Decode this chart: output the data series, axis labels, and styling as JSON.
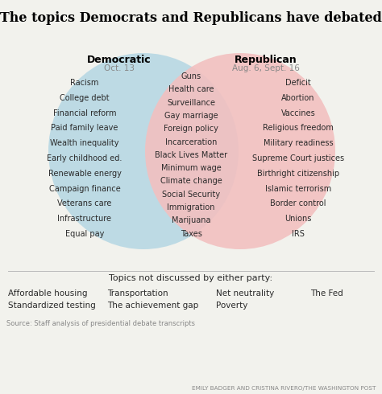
{
  "title": "The topics Democrats and Republicans have debated",
  "title_fontsize": 11.5,
  "dem_label": "Democratic",
  "dem_sublabel": "Oct. 13",
  "rep_label": "Republican",
  "rep_sublabel": "Aug. 6, Sept. 16",
  "dem_color": "#b8d8e4",
  "rep_color": "#f2c0c0",
  "dem_items": [
    "Racism",
    "College debt",
    "Financial reform",
    "Paid family leave",
    "Wealth inequality",
    "Early childhood ed.",
    "Renewable energy",
    "Campaign finance",
    "Veterans care",
    "Infrastructure",
    "Equal pay"
  ],
  "overlap_items": [
    "Guns",
    "Health care",
    "Surveillance",
    "Gay marriage",
    "Foreign policy",
    "Incarceration",
    "Black Lives Matter",
    "Minimum wage",
    "Climate change",
    "Social Security",
    "Immigration",
    "Marijuana",
    "Taxes"
  ],
  "rep_items": [
    "Deficit",
    "Abortion",
    "Vaccines",
    "Religious freedom",
    "Military readiness",
    "Supreme Court justices",
    "Birthright citizenship",
    "Islamic terrorism",
    "Border control",
    "Unions",
    "IRS"
  ],
  "neither_label": "Topics not discussed by either party:",
  "neither_items_row1": [
    "Affordable housing",
    "Transportation",
    "Net neutrality",
    "The Fed"
  ],
  "neither_items_row2": [
    "Standardized testing",
    "The achievement gap",
    "Poverty"
  ],
  "source_text": "Source: Staff analysis of presidential debate transcripts",
  "credit_text": "EMILY BADGER AND CRISTINA RIVERO/THE WASHINGTON POST",
  "bg_color": "#f2f2ed",
  "text_color": "#2a2a2a",
  "gray_text": "#888888"
}
